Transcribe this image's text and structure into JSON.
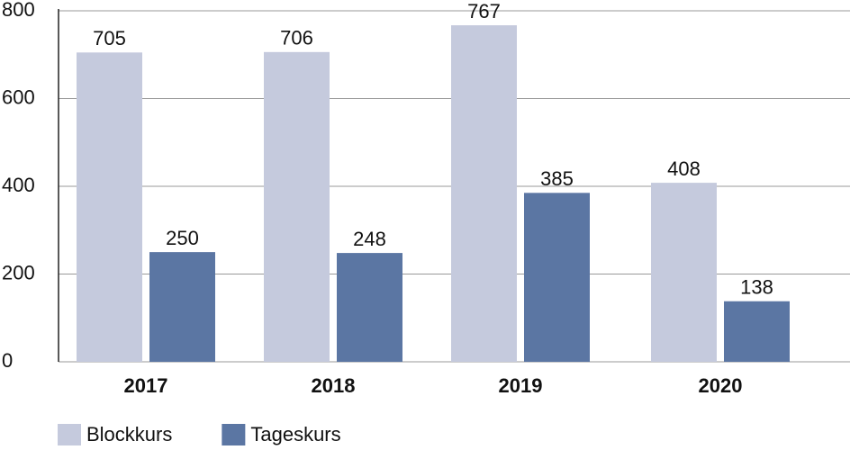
{
  "chart_data": {
    "type": "bar",
    "categories": [
      "2017",
      "2018",
      "2019",
      "2020"
    ],
    "series": [
      {
        "name": "Blockkurs",
        "color": "#c5cadd",
        "values": [
          705,
          706,
          767,
          408
        ]
      },
      {
        "name": "Tageskurs",
        "color": "#5b76a3",
        "values": [
          250,
          248,
          385,
          138
        ]
      }
    ],
    "ylim": [
      0,
      800
    ],
    "yticks": [
      0,
      200,
      400,
      600,
      800
    ],
    "grid": true
  }
}
